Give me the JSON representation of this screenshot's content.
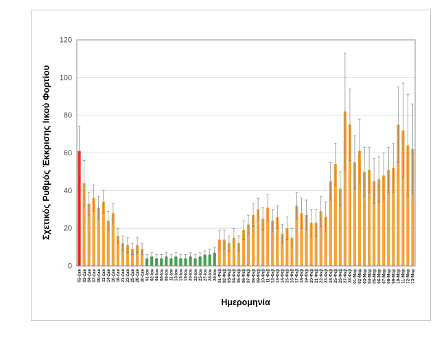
{
  "chart_data": {
    "type": "bar",
    "title": "",
    "xlabel": "Ημερομηνία",
    "ylabel": "Σχετικός Ρυθμός Έκκρισης Ιικού Φορτίου",
    "ylim": [
      0,
      120
    ],
    "yticks": [
      0,
      20,
      40,
      60,
      80,
      100,
      120
    ],
    "grid": true,
    "legend": "none",
    "error_bars": "symmetric",
    "bar_palette": {
      "red": "#E02B1F",
      "orange": "#F1A33A",
      "green": "#3EA44C"
    },
    "error_bar_color": "#A6A6A6",
    "grid_color": "#D9D9D9",
    "categories": [
      "02-Δεκ",
      "03-Δεκ",
      "04-Δεκ",
      "07-Δεκ",
      "09-Δεκ",
      "11-Δεκ",
      "14-Δεκ",
      "16-Δεκ",
      "18-Δεκ",
      "21-Δεκ",
      "23-Δεκ",
      "25-Δεκ",
      "28-Δεκ",
      "30-Δεκ",
      "01-Ιαν",
      "02-Ιαν",
      "04-Ιαν",
      "06-Ιαν",
      "08-Ιαν",
      "11-Ιαν",
      "13-Ιαν",
      "15-Ιαν",
      "18-Ιαν",
      "20-Ιαν",
      "22-Ιαν",
      "25-Ιαν",
      "27-Ιαν",
      "28-Ιαν",
      "29-Ιαν",
      "01-Φεβ",
      "02-Φεβ",
      "03-Φεβ",
      "04-Φεβ",
      "05-Φεβ",
      "06-Φεβ",
      "07-Φεβ",
      "08-Φεβ",
      "09-Φεβ",
      "10-Φεβ",
      "11-Φεβ",
      "12-Φεβ",
      "13-Φεβ",
      "14-Φεβ",
      "15-Φεβ",
      "16-Φεβ",
      "17-Φεβ",
      "18-Φεβ",
      "19-Φεβ",
      "20-Φεβ",
      "21-Φεβ",
      "22-Φεβ",
      "23-Φεβ",
      "24-Φεβ",
      "25-Φεβ",
      "26-Φεβ",
      "27-Φεβ",
      "28-Φεβ",
      "01-Μαρ",
      "02-Μαρ",
      "03-Μαρ",
      "04-Μαρ",
      "05-Μαρ",
      "06-Μαρ",
      "07-Μαρ",
      "08-Μαρ",
      "09-Μαρ",
      "10-Μαρ",
      "11-Μαρ",
      "12-Μαρ",
      "13-Μαρ"
    ],
    "values": [
      61,
      44,
      33,
      36,
      31,
      34,
      24,
      28,
      16,
      12,
      11,
      9,
      11,
      9,
      4,
      5,
      4,
      4,
      5,
      4,
      5,
      4,
      4,
      5,
      4,
      5,
      6,
      6,
      7,
      14,
      14,
      12,
      15,
      12,
      19,
      22,
      27,
      30,
      25,
      31,
      24,
      26,
      17,
      20,
      15,
      32,
      28,
      27,
      23,
      23,
      29,
      26,
      45,
      54,
      41,
      82,
      75,
      55,
      61,
      50,
      51,
      45,
      46,
      48,
      51,
      52,
      75,
      72,
      64,
      62
    ],
    "error_delta": [
      13,
      12,
      6,
      7,
      6,
      6,
      5,
      5,
      4,
      4,
      4,
      3,
      4,
      3,
      2,
      2,
      2,
      2,
      2,
      2,
      2,
      2,
      2,
      2,
      2,
      2,
      2,
      3,
      3,
      5,
      5,
      4,
      5,
      4,
      5,
      5,
      6,
      6,
      6,
      7,
      6,
      6,
      5,
      6,
      5,
      7,
      8,
      8,
      7,
      7,
      8,
      8,
      10,
      11,
      9,
      31,
      19,
      14,
      17,
      13,
      12,
      12,
      12,
      12,
      12,
      13,
      20,
      25,
      27,
      24
    ],
    "color_keys": [
      "red",
      "orange",
      "orange",
      "orange",
      "orange",
      "orange",
      "orange",
      "orange",
      "orange",
      "orange",
      "orange",
      "orange",
      "orange",
      "orange",
      "green",
      "green",
      "green",
      "green",
      "green",
      "green",
      "green",
      "green",
      "green",
      "green",
      "green",
      "green",
      "green",
      "green",
      "green",
      "orange",
      "orange",
      "orange",
      "orange",
      "orange",
      "orange",
      "orange",
      "orange",
      "orange",
      "orange",
      "orange",
      "orange",
      "orange",
      "orange",
      "orange",
      "orange",
      "orange",
      "orange",
      "orange",
      "orange",
      "orange",
      "orange",
      "orange",
      "orange",
      "orange",
      "orange",
      "orange",
      "orange",
      "orange",
      "orange",
      "orange",
      "orange",
      "orange",
      "orange",
      "orange",
      "orange",
      "orange",
      "orange",
      "orange",
      "orange",
      "orange"
    ]
  }
}
